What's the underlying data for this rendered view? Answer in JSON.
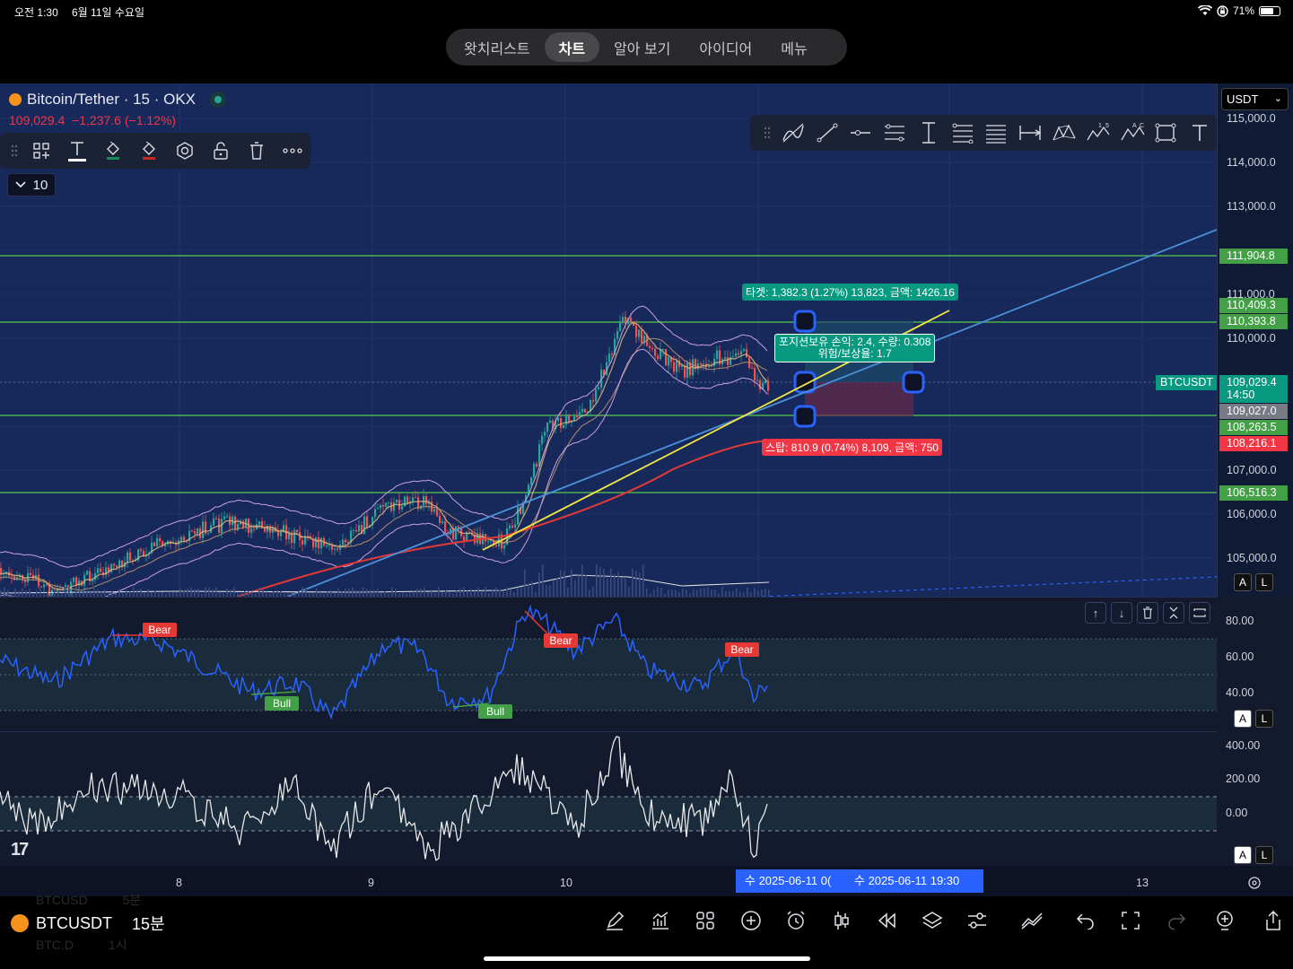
{
  "status_bar": {
    "time": "오전 1:30",
    "date": "6월 11일 수요일",
    "battery": "71%",
    "battery_level": 0.71
  },
  "tabs": [
    {
      "label": "왓치리스트",
      "active": false
    },
    {
      "label": "차트",
      "active": true
    },
    {
      "label": "알아 보기",
      "active": false
    },
    {
      "label": "아이디어",
      "active": false
    },
    {
      "label": "메뉴",
      "active": false
    }
  ],
  "symbol": {
    "title": "Bitcoin/Tether · 15 · OKX",
    "last_price": "109,029.4",
    "change": "−1,237.6 (−1.12%)",
    "interval_chip": "10"
  },
  "currency": "USDT",
  "price_axis": {
    "labels": [
      "115,000.0",
      "114,000.0",
      "113,000.0",
      "111,000.0",
      "110,000.0",
      "107,000.0",
      "106,000.0",
      "105,000.0"
    ],
    "tags": [
      {
        "text": "111,904.8",
        "color": "#43a047"
      },
      {
        "text": "110,409.3",
        "color": "#43a047"
      },
      {
        "text": "110,393.8",
        "color": "#43a047"
      },
      {
        "text": "109,029.4",
        "sub": "14:50",
        "color": "#089981"
      },
      {
        "text": "109,027.0",
        "color": "#787b86"
      },
      {
        "text": "108,263.5",
        "color": "#43a047"
      },
      {
        "text": "108,216.1",
        "color": "#f23645"
      },
      {
        "text": "106,516.3",
        "color": "#43a047"
      }
    ],
    "symbol_tag": "BTCUSDT"
  },
  "position": {
    "target_label": "타겟: 1,382.3 (1.27%) 13,823, 금액: 1426.16",
    "info_line1": "포지션보유 손익: 2.4, 수량: 0.308",
    "info_line2": "위험/보상율: 1.7",
    "stop_label": "스탑: 810.9 (0.74%) 8,109, 금액: 750"
  },
  "rsi": {
    "axis": [
      "80.00",
      "60.00",
      "40.00"
    ],
    "signals": [
      {
        "text": "Bear",
        "type": "bear"
      },
      {
        "text": "Bull",
        "type": "bull"
      },
      {
        "text": "Bull",
        "type": "bull"
      },
      {
        "text": "Bear",
        "type": "bear"
      },
      {
        "text": "Bear",
        "type": "bear"
      }
    ]
  },
  "cci": {
    "axis": [
      "400.00",
      "200.00",
      "0.00"
    ]
  },
  "time_axis": {
    "labels": [
      "8",
      "9",
      "10",
      "13"
    ],
    "crosshair_a": "수 2025-06-11",
    "crosshair_a2": "0(",
    "crosshair_b": "수 2025-06-11  19:30"
  },
  "scale_buttons": {
    "a": "A",
    "l": "L"
  },
  "bottom": {
    "symbol": "BTCUSDT",
    "interval": "15분",
    "ghost_top_sym": "BTCUSD",
    "ghost_top_int": "5분",
    "ghost_bottom_sym": "BTC.D",
    "ghost_bottom_int": "1시"
  },
  "logo": "17"
}
